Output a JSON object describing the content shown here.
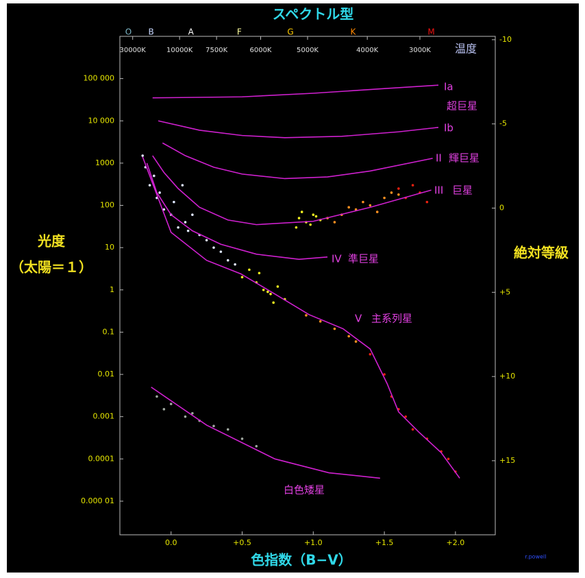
{
  "chart_data": {
    "type": "scatter",
    "title": "スペクトル型",
    "x_label": "色指数（B−V）",
    "y_label": [
      "光度",
      "（太陽＝１）"
    ],
    "y2_label": "絶対等級",
    "credit": "r.powell",
    "log_y": true,
    "xlim": [
      -0.36,
      2.28
    ],
    "ylim": [
      1.6e-06,
      1000000
    ],
    "y2lim": [
      -10.2,
      19.4
    ],
    "y2_inverted": true,
    "xticks": [
      {
        "value": 0,
        "label": "0.0"
      },
      {
        "value": 0.5,
        "label": "+0.5"
      },
      {
        "value": 1,
        "label": "+1.0"
      },
      {
        "value": 1.5,
        "label": "+1.5"
      },
      {
        "value": 2,
        "label": "+2.0"
      }
    ],
    "yticks": [
      {
        "value": 100000,
        "label": "100 000"
      },
      {
        "value": 10000,
        "label": "10 000"
      },
      1000,
      100,
      10,
      1,
      0.1,
      0.01,
      0.001,
      0.0001,
      {
        "value": 1e-05,
        "label": "0.000 01"
      }
    ],
    "y2ticks": [
      -10,
      -5,
      0,
      {
        "value": 5,
        "label": "+5"
      },
      {
        "value": 10,
        "label": "+10"
      },
      {
        "value": 15,
        "label": "+15"
      }
    ],
    "spectral_classes": [
      {
        "label": "O",
        "x": -0.3,
        "color": "#7fb8c8"
      },
      {
        "label": "B",
        "x": -0.14,
        "color": "#c8d8ff"
      },
      {
        "label": "A",
        "x": 0.14,
        "color": "#ffffff"
      },
      {
        "label": "F",
        "x": 0.48,
        "color": "#ffffa0"
      },
      {
        "label": "G",
        "x": 0.84,
        "color": "#ffcc00"
      },
      {
        "label": "K",
        "x": 1.28,
        "color": "#ff8800"
      },
      {
        "label": "M",
        "x": 1.83,
        "color": "#ee1111"
      }
    ],
    "temperature_title": "温度",
    "temperature_ticks": [
      {
        "value": -0.27,
        "label": "30000K"
      },
      {
        "value": 0.06,
        "label": "10000K"
      },
      {
        "value": 0.32,
        "label": "7500K"
      },
      {
        "value": 0.63,
        "label": "6000K"
      },
      {
        "value": 0.96,
        "label": "5000K"
      },
      {
        "value": 1.38,
        "label": "4000K"
      },
      {
        "value": 1.75,
        "label": "3000K"
      }
    ],
    "series": [
      {
        "name": "Ia",
        "color": "#d020d0",
        "x": [
          -0.13,
          0.5,
          1.0,
          1.5,
          1.88
        ],
        "values": [
          35000,
          37000,
          45000,
          58000,
          70000
        ]
      },
      {
        "name": "Ib",
        "color": "#d020d0",
        "x": [
          -0.09,
          0.2,
          0.5,
          0.8,
          1.2,
          1.6,
          1.88
        ],
        "values": [
          10000,
          6000,
          4500,
          4000,
          4300,
          5500,
          7000
        ]
      },
      {
        "name": "II",
        "color": "#d020d0",
        "x": [
          -0.06,
          0.1,
          0.3,
          0.5,
          0.8,
          1.1,
          1.4,
          1.84
        ],
        "values": [
          3000,
          1500,
          800,
          550,
          430,
          470,
          650,
          1300
        ]
      },
      {
        "name": "III",
        "color": "#d020d0",
        "x": [
          -0.13,
          -0.05,
          0.05,
          0.2,
          0.4,
          0.6,
          1.0,
          1.4,
          1.83
        ],
        "values": [
          1500,
          600,
          250,
          90,
          45,
          35,
          42,
          90,
          230
        ]
      },
      {
        "name": "IV",
        "color": "#d020d0",
        "x": [
          -0.17,
          -0.1,
          0.0,
          0.15,
          0.35,
          0.6,
          0.9,
          1.1
        ],
        "values": [
          1000,
          200,
          60,
          25,
          12,
          7,
          5.3,
          6
        ]
      },
      {
        "name": "V",
        "color": "#d020d0",
        "x": [
          -0.2,
          0.0,
          0.25,
          0.49,
          0.73,
          0.97,
          1.21,
          1.4,
          1.52,
          1.6,
          1.74,
          1.9,
          2.03
        ],
        "values": [
          1400,
          23,
          5,
          2.4,
          0.8,
          0.26,
          0.12,
          0.04,
          0.006,
          0.0013,
          0.00044,
          0.00014,
          3.5e-05
        ]
      },
      {
        "name": "白色矮星",
        "color": "#d020d0",
        "x": [
          -0.14,
          0.25,
          0.73,
          1.11,
          1.47
        ],
        "values": [
          0.005,
          0.00063,
          0.0001,
          4.7e-05,
          3.5e-05
        ]
      }
    ],
    "annotations": [
      "超巨星",
      "輝巨星",
      "巨星",
      "準巨星",
      "主系列星"
    ],
    "stars": [
      {
        "color": "#dfe8ff",
        "x": [
          -0.18,
          -0.15,
          -0.12,
          -0.1,
          -0.08,
          -0.05,
          0.0,
          0.02,
          0.05,
          0.1,
          0.12,
          0.15,
          0.2,
          0.25,
          0.3,
          0.35,
          0.4,
          0.45,
          -0.2,
          0.08
        ],
        "y": [
          800,
          300,
          500,
          150,
          200,
          80,
          60,
          120,
          30,
          40,
          25,
          60,
          20,
          15,
          10,
          8,
          5,
          4,
          1500,
          300
        ]
      },
      {
        "color": "#f0f020",
        "x": [
          0.5,
          0.55,
          0.6,
          0.65,
          0.7,
          0.75,
          0.8,
          0.62,
          0.68,
          0.9,
          0.95,
          1.0,
          1.05,
          0.92,
          0.98,
          1.02,
          0.88,
          0.72
        ],
        "y": [
          2,
          3,
          1.5,
          1,
          0.8,
          1.2,
          0.6,
          2.5,
          0.9,
          50,
          40,
          60,
          45,
          70,
          35,
          55,
          30,
          0.5
        ]
      },
      {
        "color": "#ff9020",
        "x": [
          1.1,
          1.2,
          1.3,
          1.4,
          1.5,
          1.15,
          1.25,
          1.35,
          1.45,
          1.55,
          0.95,
          1.05,
          1.15,
          1.25,
          1.3,
          1.6
        ],
        "y": [
          50,
          60,
          80,
          100,
          150,
          40,
          90,
          120,
          70,
          200,
          0.25,
          0.18,
          0.12,
          0.08,
          0.06,
          180
        ]
      },
      {
        "color": "#ee2010",
        "x": [
          1.6,
          1.65,
          1.7,
          1.75,
          1.8,
          1.5,
          1.55,
          1.6,
          1.65,
          1.7,
          1.8,
          1.9,
          1.95,
          2.0,
          1.4
        ],
        "y": [
          250,
          150,
          300,
          200,
          120,
          0.01,
          0.003,
          0.0015,
          0.001,
          0.0005,
          0.0003,
          0.00015,
          0.0001,
          5e-05,
          0.03
        ]
      },
      {
        "color": "#a0a8a0",
        "x": [
          -0.1,
          0.0,
          0.1,
          0.2,
          0.3,
          0.4,
          0.5,
          0.6,
          -0.05,
          0.15
        ],
        "y": [
          0.003,
          0.002,
          0.001,
          0.0008,
          0.0006,
          0.0005,
          0.0003,
          0.0002,
          0.0015,
          0.0012
        ]
      }
    ]
  }
}
